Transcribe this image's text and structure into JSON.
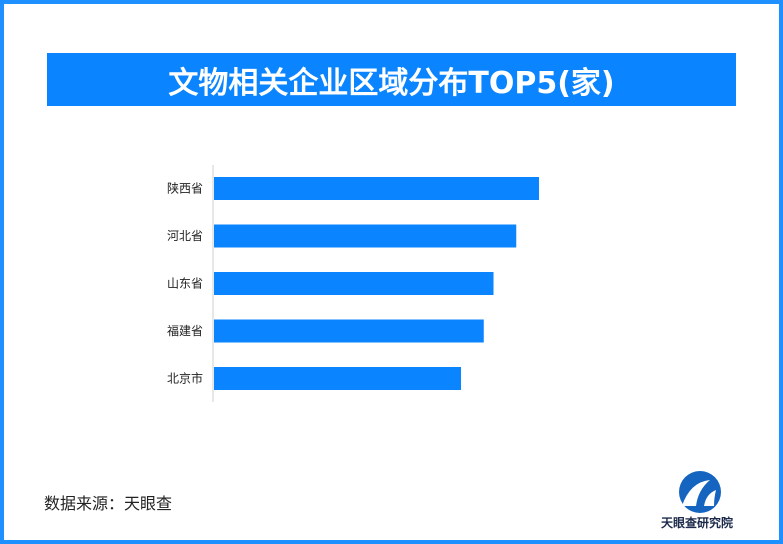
{
  "header": {
    "title": "文物相关企业区域分布TOP5(家)"
  },
  "chart_data": {
    "type": "bar",
    "orientation": "horizontal",
    "title": "文物相关企业区域分布TOP5(家)",
    "categories": [
      "陕西省",
      "河北省",
      "山东省",
      "福建省",
      "北京市"
    ],
    "values": [
      100,
      93,
      86,
      83,
      76
    ],
    "xlim": [
      0,
      100
    ],
    "grid": false,
    "bar_color": "#0A84FF"
  },
  "footer": {
    "source": "数据来源：天眼查",
    "brand": "天眼查研究院"
  },
  "colors": {
    "accent": "#0A84FF",
    "frame": "#1E90FF",
    "text": "#222222"
  }
}
